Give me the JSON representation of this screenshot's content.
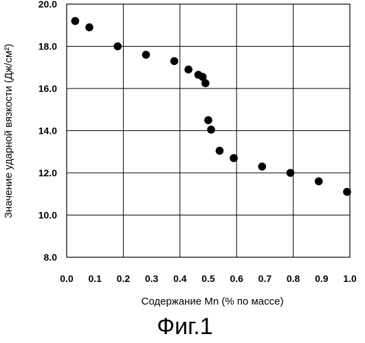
{
  "chart_data": {
    "type": "scatter",
    "title": "",
    "xlabel": "Содержание Mn (% по массе)",
    "ylabel": "Значение ударной вязкости (Дж/см²)",
    "xlim": [
      0.0,
      1.0
    ],
    "ylim": [
      8.0,
      20.0
    ],
    "x_ticks": [
      "0.0",
      "0.1",
      "0.2",
      "0.3",
      "0.4",
      "0.5",
      "0.6",
      "0.7",
      "0.8",
      "0.9",
      "1.0"
    ],
    "y_ticks": [
      "8.0",
      "10.0",
      "12.0",
      "14.0",
      "16.0",
      "18.0",
      "20.0"
    ],
    "grid": true,
    "legend": "none",
    "marker_color": "#000000",
    "series": [
      {
        "points": [
          {
            "x": 0.03,
            "y": 19.2
          },
          {
            "x": 0.08,
            "y": 18.9
          },
          {
            "x": 0.18,
            "y": 18.0
          },
          {
            "x": 0.28,
            "y": 17.6
          },
          {
            "x": 0.38,
            "y": 17.3
          },
          {
            "x": 0.43,
            "y": 16.9
          },
          {
            "x": 0.465,
            "y": 16.65
          },
          {
            "x": 0.48,
            "y": 16.55
          },
          {
            "x": 0.49,
            "y": 16.25
          },
          {
            "x": 0.5,
            "y": 14.5
          },
          {
            "x": 0.51,
            "y": 14.05
          },
          {
            "x": 0.54,
            "y": 13.05
          },
          {
            "x": 0.59,
            "y": 12.7
          },
          {
            "x": 0.69,
            "y": 12.3
          },
          {
            "x": 0.79,
            "y": 12.0
          },
          {
            "x": 0.89,
            "y": 11.6
          },
          {
            "x": 0.99,
            "y": 11.1
          }
        ]
      }
    ]
  },
  "figure_caption": "Фиг.1"
}
